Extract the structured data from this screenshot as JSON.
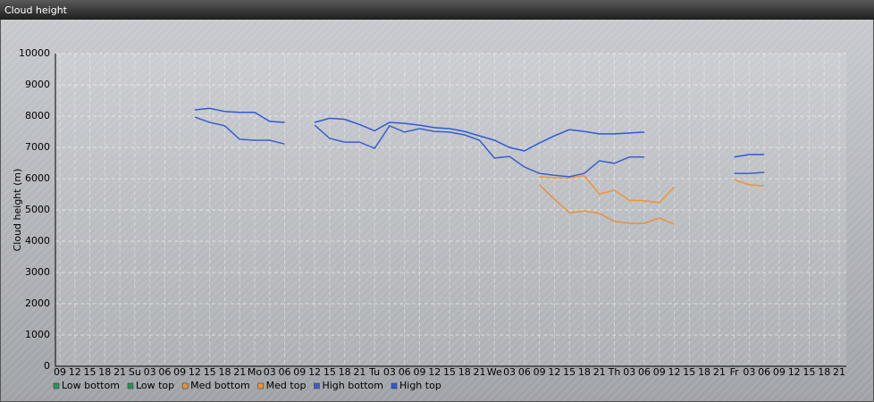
{
  "chart_data": {
    "type": "line",
    "title": "Cloud height",
    "y_label": "Cloud height (m)",
    "categories": [
      "09",
      "12",
      "15",
      "18",
      "21",
      "Su",
      "03",
      "06",
      "09",
      "12",
      "15",
      "18",
      "21",
      "Mo",
      "03",
      "06",
      "09",
      "12",
      "15",
      "18",
      "21",
      "Tu",
      "03",
      "06",
      "09",
      "12",
      "15",
      "18",
      "21",
      "We",
      "03",
      "06",
      "09",
      "12",
      "15",
      "18",
      "21",
      "Th",
      "03",
      "06",
      "09",
      "12",
      "15",
      "18",
      "21",
      "Fr",
      "03",
      "06",
      "09",
      "12",
      "15",
      "18",
      "21"
    ],
    "series": [
      {
        "name": "Low bottom",
        "color": "#1f9a52",
        "values": [
          null,
          null,
          null,
          null,
          null,
          null,
          null,
          null,
          null,
          null,
          null,
          null,
          null,
          null,
          null,
          null,
          null,
          null,
          null,
          null,
          null,
          null,
          null,
          null,
          null,
          null,
          null,
          null,
          null,
          null,
          null,
          null,
          null,
          null,
          null,
          null,
          null,
          null,
          null,
          null,
          null,
          null,
          null,
          null,
          null,
          null,
          null,
          null,
          null,
          null,
          null,
          null,
          null
        ]
      },
      {
        "name": "Low top",
        "color": "#1f9a52",
        "values": [
          null,
          null,
          null,
          null,
          null,
          null,
          null,
          null,
          null,
          null,
          null,
          null,
          null,
          null,
          null,
          null,
          null,
          null,
          null,
          null,
          null,
          null,
          null,
          null,
          null,
          null,
          null,
          null,
          null,
          null,
          null,
          null,
          null,
          null,
          null,
          null,
          null,
          null,
          null,
          null,
          null,
          null,
          null,
          null,
          null,
          null,
          null,
          null,
          null,
          null,
          null,
          null,
          null
        ]
      },
      {
        "name": "Med bottom",
        "color": "#e8913a",
        "values": [
          null,
          null,
          null,
          null,
          null,
          null,
          null,
          null,
          null,
          null,
          null,
          null,
          null,
          null,
          null,
          null,
          null,
          null,
          null,
          null,
          null,
          null,
          null,
          null,
          null,
          null,
          null,
          null,
          null,
          null,
          null,
          null,
          5800,
          5340,
          4910,
          4970,
          4890,
          4630,
          4570,
          4570,
          4740,
          4540,
          null,
          null,
          null,
          null,
          null,
          null,
          null,
          null,
          null,
          null,
          null
        ]
      },
      {
        "name": "Med top",
        "color": "#f0952e",
        "values": [
          null,
          null,
          null,
          null,
          null,
          null,
          null,
          null,
          null,
          null,
          null,
          null,
          null,
          null,
          null,
          null,
          null,
          null,
          null,
          null,
          null,
          null,
          null,
          null,
          null,
          null,
          null,
          null,
          null,
          null,
          null,
          null,
          6060,
          6030,
          6030,
          6090,
          5510,
          5630,
          5310,
          5290,
          5230,
          5740,
          null,
          null,
          null,
          5970,
          5800,
          5770,
          null,
          null,
          null,
          null,
          null
        ]
      },
      {
        "name": "High bottom",
        "color": "#3a5fcd",
        "values": [
          null,
          null,
          null,
          null,
          null,
          null,
          null,
          null,
          null,
          7970,
          7800,
          7690,
          7260,
          7230,
          7230,
          7110,
          null,
          7710,
          7290,
          7170,
          7170,
          6970,
          7690,
          7490,
          7600,
          7510,
          7490,
          7400,
          7230,
          6660,
          6710,
          6370,
          6170,
          6110,
          6060,
          6170,
          6570,
          6490,
          6690,
          6690,
          null,
          null,
          null,
          null,
          null,
          6170,
          6170,
          6200,
          null,
          null,
          null,
          null,
          null
        ]
      },
      {
        "name": "High top",
        "color": "#2f59d6",
        "values": [
          null,
          null,
          null,
          null,
          null,
          null,
          null,
          null,
          null,
          8200,
          8250,
          8150,
          8120,
          8120,
          7830,
          7800,
          null,
          7800,
          7930,
          7900,
          7730,
          7530,
          7800,
          7770,
          7710,
          7630,
          7600,
          7510,
          7370,
          7230,
          7000,
          6890,
          7140,
          7370,
          7570,
          7510,
          7430,
          7430,
          7460,
          7490,
          null,
          null,
          null,
          null,
          null,
          6690,
          6770,
          6770,
          null,
          null,
          null,
          null,
          null
        ]
      }
    ],
    "ylim": [
      0,
      10000
    ],
    "yticks": [
      0,
      1000,
      2000,
      3000,
      4000,
      5000,
      6000,
      7000,
      8000,
      9000,
      10000
    ],
    "grid": true
  }
}
